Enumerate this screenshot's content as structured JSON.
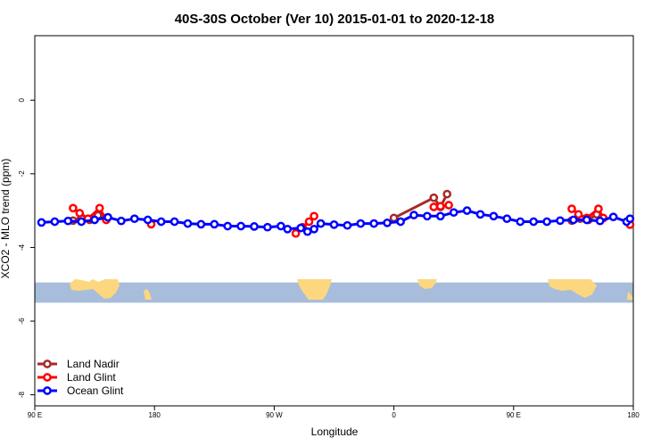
{
  "chart_data": {
    "type": "line",
    "title": "40S-30S October (Ver 10)   2015-01-01 to 2020-12-18",
    "xlabel": "Longitude",
    "ylabel": "XCO2 - MLO trend (ppm)",
    "xlim": [
      90,
      450
    ],
    "ylim": [
      -8.3,
      1.75
    ],
    "x_ticks": [
      {
        "value": 90,
        "label": "90 E"
      },
      {
        "value": 162,
        "label": "180"
      },
      {
        "value": 234,
        "label": "90 W"
      },
      {
        "value": 306,
        "label": "0"
      },
      {
        "value": 378,
        "label": "90 E"
      },
      {
        "value": 450,
        "label": "180"
      }
    ],
    "y_ticks": [
      {
        "value": 0,
        "label": "0"
      },
      {
        "value": -2,
        "label": "-2"
      },
      {
        "value": -4,
        "label": "-4"
      },
      {
        "value": -6,
        "label": "-6"
      },
      {
        "value": -8,
        "label": "-8"
      }
    ],
    "map_band": {
      "ymin": -5.5,
      "ymax": -4.95,
      "ocean_color": "#a7bddb",
      "land_color": "#fcd77f"
    },
    "legend_position": "bottom-left",
    "series": [
      {
        "name": "Land Nadir",
        "color": "#a52a2a",
        "segments": [
          [
            [
              113,
              -3.27
            ],
            [
              118,
              -3.18
            ],
            [
              123,
              -3.25
            ],
            [
              128,
              -3.13
            ],
            [
              133,
              -3.2
            ]
          ],
          [
            [
              306,
              -3.2
            ],
            [
              330,
              -2.65
            ],
            [
              334,
              -2.9
            ],
            [
              338,
              -2.55
            ]
          ],
          [
            [
              413,
              -3.27
            ],
            [
              418,
              -3.22
            ],
            [
              423,
              -3.25
            ],
            [
              428,
              -3.1
            ]
          ]
        ]
      },
      {
        "name": "Land Glint",
        "color": "#ff0000",
        "segments": [
          [
            [
              113,
              -2.93
            ],
            [
              117,
              -3.07
            ],
            [
              122,
              -3.22
            ],
            [
              129,
              -2.93
            ],
            [
              133,
              -3.25
            ]
          ],
          [
            [
              160,
              -3.37
            ]
          ],
          [
            [
              247,
              -3.62
            ],
            [
              251,
              -3.45
            ],
            [
              255,
              -3.3
            ],
            [
              258,
              -3.15
            ]
          ],
          [
            [
              330,
              -2.9
            ],
            [
              334,
              -2.88
            ],
            [
              339,
              -2.85
            ]
          ],
          [
            [
              413,
              -2.95
            ],
            [
              417,
              -3.1
            ],
            [
              422,
              -3.2
            ],
            [
              429,
              -2.95
            ],
            [
              432,
              -3.2
            ]
          ],
          [
            [
              448,
              -3.38
            ]
          ]
        ]
      },
      {
        "name": "Ocean Glint",
        "color": "#0000ff",
        "segments": [
          [
            [
              94,
              -3.32
            ],
            [
              102,
              -3.3
            ],
            [
              110,
              -3.28
            ],
            [
              118,
              -3.3
            ],
            [
              126,
              -3.25
            ],
            [
              134,
              -3.18
            ],
            [
              142,
              -3.28
            ],
            [
              150,
              -3.22
            ],
            [
              158,
              -3.25
            ],
            [
              166,
              -3.3
            ],
            [
              174,
              -3.3
            ],
            [
              182,
              -3.35
            ],
            [
              190,
              -3.37
            ],
            [
              198,
              -3.37
            ],
            [
              206,
              -3.42
            ],
            [
              214,
              -3.42
            ],
            [
              222,
              -3.43
            ],
            [
              230,
              -3.45
            ],
            [
              238,
              -3.42
            ],
            [
              242,
              -3.5
            ],
            [
              250,
              -3.47
            ],
            [
              254,
              -3.57
            ],
            [
              258,
              -3.5
            ],
            [
              262,
              -3.35
            ],
            [
              270,
              -3.38
            ],
            [
              278,
              -3.4
            ],
            [
              286,
              -3.35
            ],
            [
              294,
              -3.35
            ],
            [
              302,
              -3.33
            ],
            [
              310,
              -3.3
            ],
            [
              318,
              -3.12
            ],
            [
              326,
              -3.15
            ],
            [
              334,
              -3.15
            ],
            [
              342,
              -3.05
            ],
            [
              350,
              -3.0
            ],
            [
              358,
              -3.1
            ],
            [
              366,
              -3.15
            ],
            [
              374,
              -3.22
            ],
            [
              382,
              -3.3
            ],
            [
              390,
              -3.3
            ],
            [
              398,
              -3.3
            ],
            [
              406,
              -3.27
            ],
            [
              414,
              -3.25
            ],
            [
              422,
              -3.25
            ],
            [
              430,
              -3.28
            ],
            [
              438,
              -3.17
            ],
            [
              446,
              -3.3
            ],
            [
              448,
              -3.22
            ]
          ]
        ]
      }
    ]
  }
}
